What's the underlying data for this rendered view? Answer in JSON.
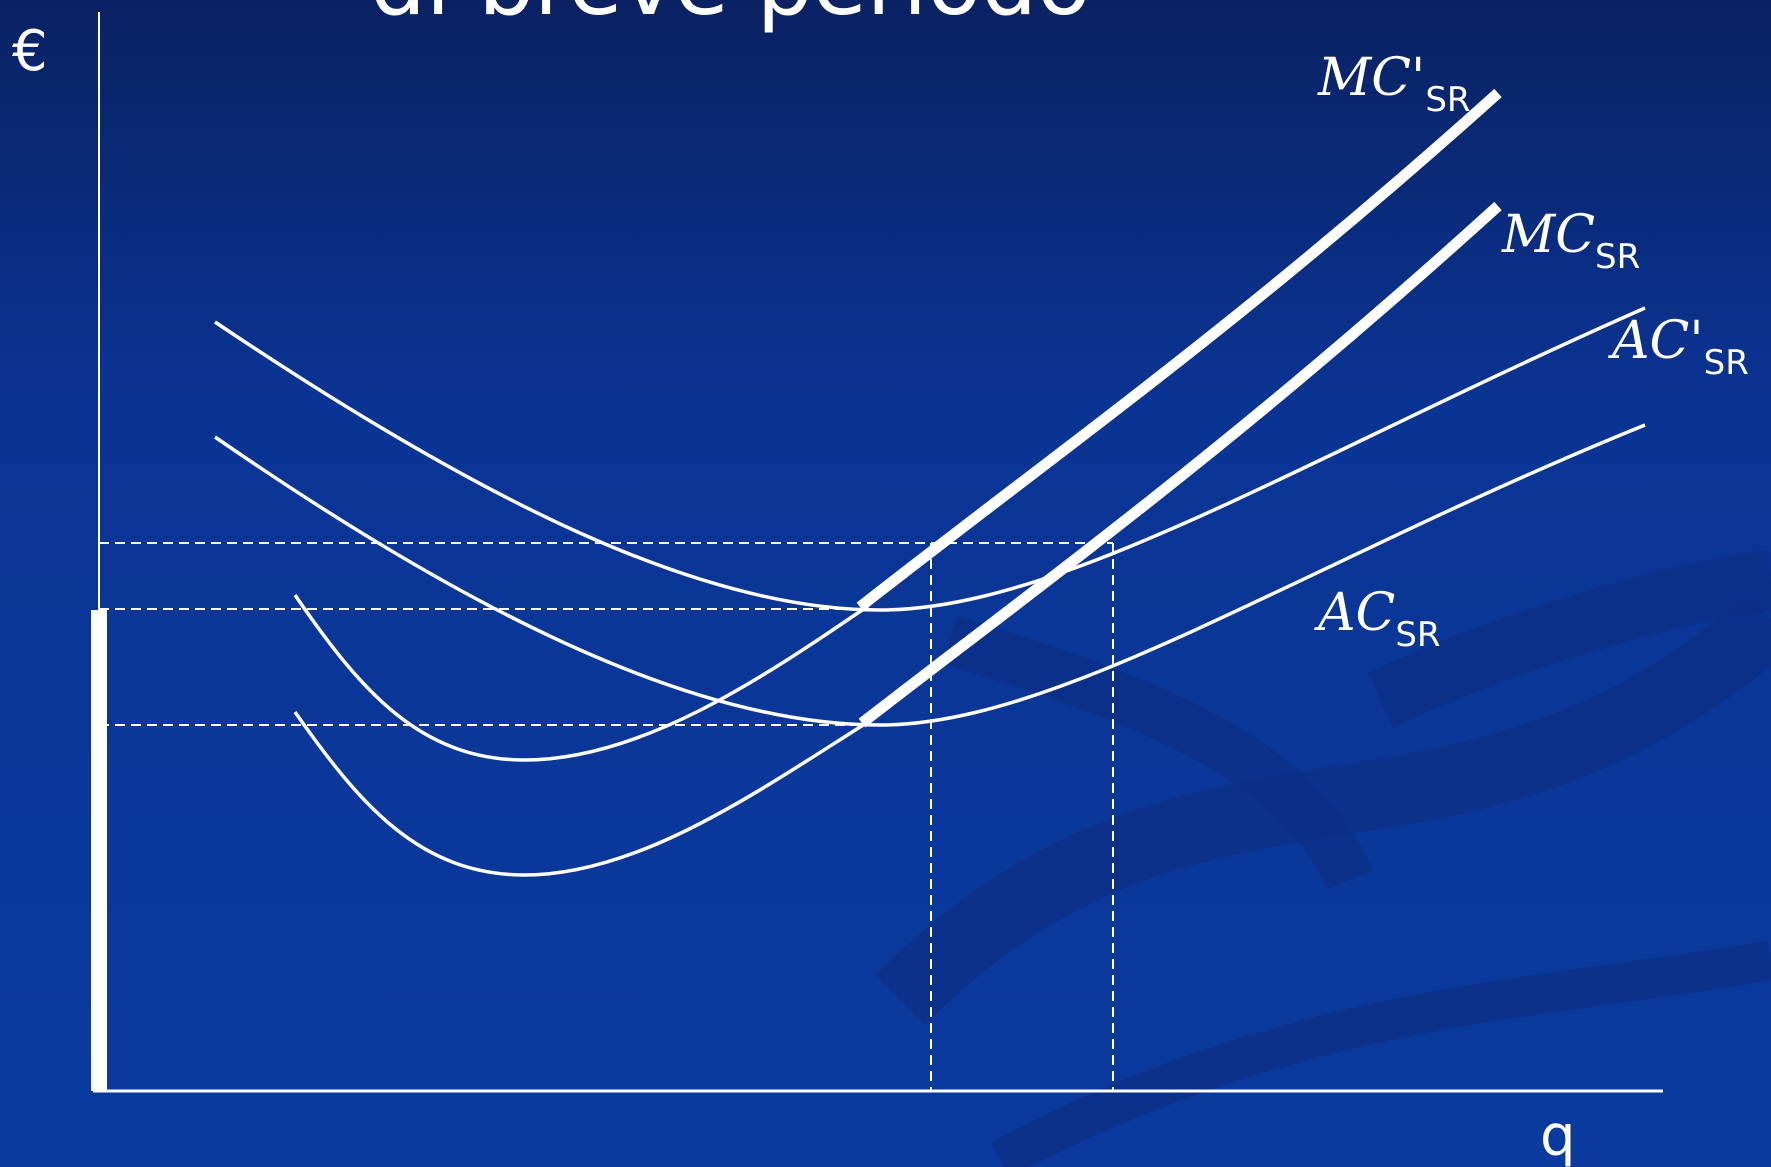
{
  "slide": {
    "title": "di breve periodo"
  },
  "chart_data": {
    "type": "line",
    "y_axis_label": "€",
    "x_axis_label": "q",
    "series": [
      {
        "name": "MC'",
        "subscript": "SR"
      },
      {
        "name": "MC",
        "subscript": "SR"
      },
      {
        "name": "AC'",
        "subscript": "SR"
      },
      {
        "name": "AC",
        "subscript": "SR"
      }
    ]
  },
  "colors": {
    "background_top": "#0a2263",
    "background_bottom": "#0a3a9a",
    "lines": "#ffffff"
  }
}
